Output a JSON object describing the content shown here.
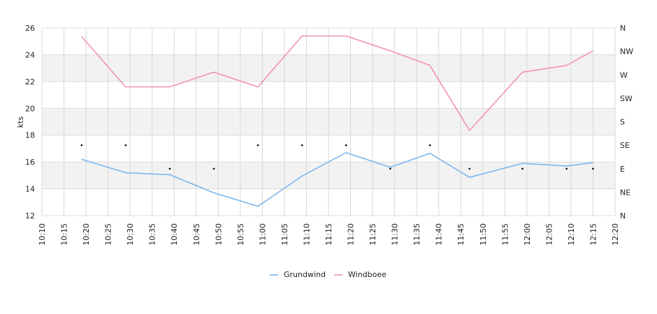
{
  "chart_data": {
    "type": "line",
    "ylabel": "kts",
    "ylim": [
      12,
      26
    ],
    "yticks": [
      "12",
      "14",
      "16",
      "18",
      "20",
      "22",
      "24",
      "26"
    ],
    "xticks": [
      "10:10",
      "10:15",
      "10:20",
      "10:25",
      "10:30",
      "10:35",
      "10:40",
      "10:45",
      "10:50",
      "10:55",
      "11:00",
      "11:05",
      "11:10",
      "11:15",
      "11:20",
      "11:25",
      "11:30",
      "11:35",
      "11:40",
      "11:45",
      "11:50",
      "11:55",
      "12:00",
      "12:05",
      "12:10",
      "12:15",
      "12:20"
    ],
    "direction_ticks": [
      "N",
      "NE",
      "E",
      "SE",
      "S",
      "SW",
      "W",
      "NW",
      "N"
    ],
    "x": [
      "10:19",
      "10:29",
      "10:39",
      "10:49",
      "10:59",
      "11:09",
      "11:19",
      "11:29",
      "11:38",
      "11:47",
      "11:59",
      "12:09",
      "12:15"
    ],
    "series": [
      {
        "name": "Grundwind",
        "color": "#7cb5ec",
        "values": [
          16.2,
          15.2,
          15.05,
          13.7,
          12.7,
          14.95,
          16.7,
          15.6,
          16.65,
          14.85,
          15.9,
          15.7,
          15.95
        ]
      },
      {
        "name": "Windboee",
        "color": "#f28fbd",
        "values": [
          25.35,
          21.6,
          21.6,
          22.7,
          21.6,
          25.4,
          25.4,
          24.3,
          23.2,
          18.35,
          22.7,
          23.2,
          24.3
        ]
      }
    ],
    "direction": {
      "values": [
        "SE",
        "SE",
        "E",
        "E",
        "SE",
        "SE",
        "SE",
        "E",
        "SE",
        "E",
        "E",
        "E",
        "E"
      ]
    },
    "grid": true,
    "legend": "bottom"
  }
}
